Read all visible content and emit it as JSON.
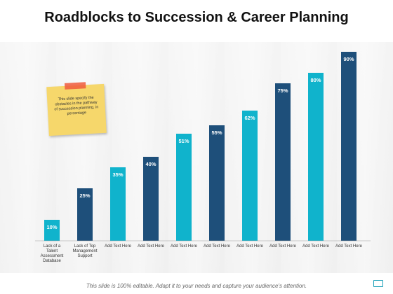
{
  "title": "Roadblocks to Succession & Career Planning",
  "note": "This slide specify the obstacles in the pathway of succession planning, in percentage",
  "footer": "This slide is 100% editable. Adapt it to your needs and capture your audience's attention.",
  "colors": {
    "teal": "#10b3cc",
    "navy": "#1e4f7a"
  },
  "chart_data": {
    "type": "bar",
    "categories": [
      "Lack of a Talent Assessment Database",
      "Lack of Top Management Support",
      "Add Text Here",
      "Add Text Here",
      "Add Text Here",
      "Add Text Here",
      "Add Text Here",
      "Add Text Here",
      "Add Text Here",
      "Add Text Here"
    ],
    "values": [
      10,
      25,
      35,
      40,
      51,
      55,
      62,
      75,
      80,
      90
    ],
    "labels": [
      "10%",
      "25%",
      "35%",
      "40%",
      "51%",
      "55%",
      "62%",
      "75%",
      "80%",
      "90%"
    ],
    "bar_colors": [
      "#10b3cc",
      "#1e4f7a",
      "#10b3cc",
      "#1e4f7a",
      "#10b3cc",
      "#1e4f7a",
      "#10b3cc",
      "#1e4f7a",
      "#10b3cc",
      "#1e4f7a"
    ],
    "ylim": [
      0,
      100
    ],
    "grid": false,
    "legend": "none"
  }
}
